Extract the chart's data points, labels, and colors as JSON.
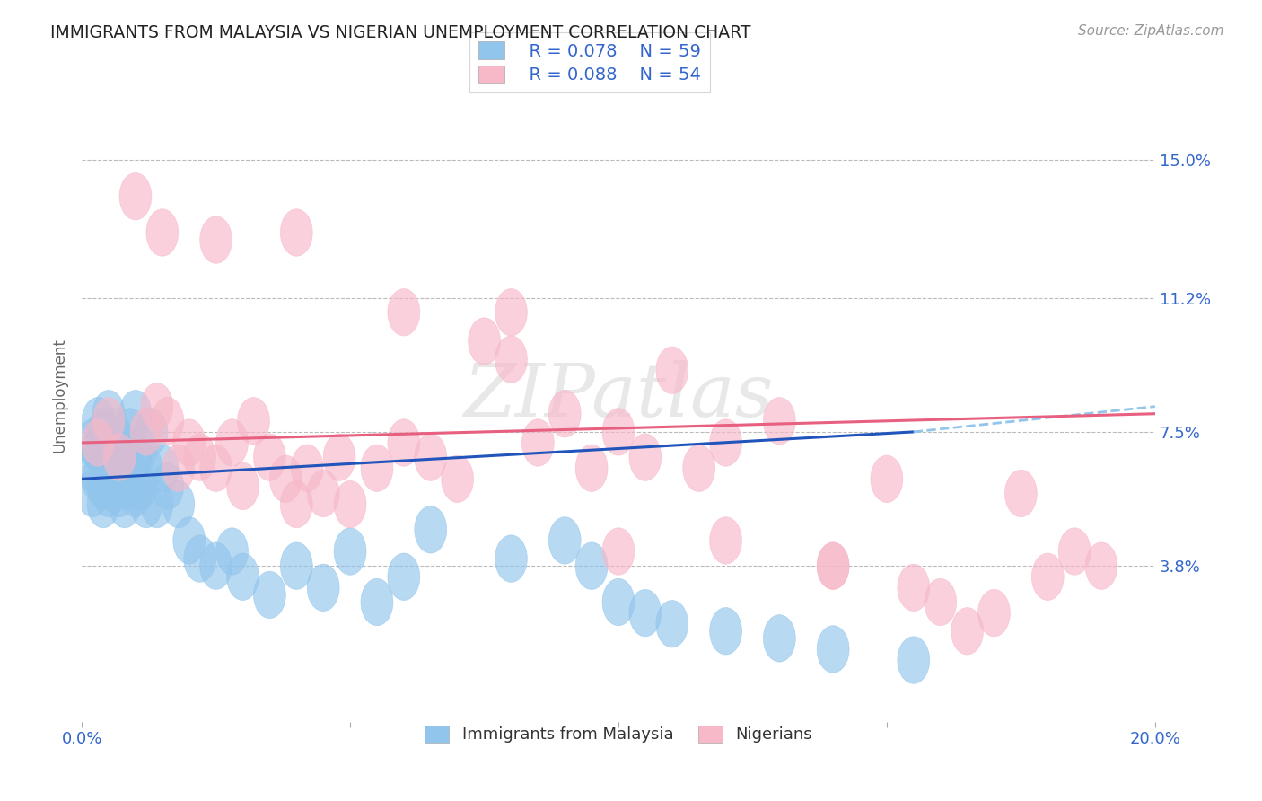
{
  "title": "IMMIGRANTS FROM MALAYSIA VS NIGERIAN UNEMPLOYMENT CORRELATION CHART",
  "source": "Source: ZipAtlas.com",
  "ylabel": "Unemployment",
  "xlim": [
    0.0,
    0.2
  ],
  "ylim": [
    -0.005,
    0.175
  ],
  "yticks": [
    0.038,
    0.075,
    0.112,
    0.15
  ],
  "ytick_labels": [
    "3.8%",
    "7.5%",
    "11.2%",
    "15.0%"
  ],
  "xticks": [
    0.0,
    0.05,
    0.1,
    0.15,
    0.2
  ],
  "xtick_labels": [
    "0.0%",
    "",
    "",
    "",
    "20.0%"
  ],
  "legend_r1": "R = 0.078",
  "legend_n1": "N = 59",
  "legend_r2": "R = 0.088",
  "legend_n2": "N = 54",
  "color_blue": "#92C5EC",
  "color_pink": "#F7B8C8",
  "line_blue": "#2255BB",
  "line_pink": "#E86080",
  "watermark": "ZIPatlas",
  "blue_scatter_x": [
    0.002,
    0.002,
    0.002,
    0.003,
    0.003,
    0.003,
    0.004,
    0.004,
    0.004,
    0.004,
    0.005,
    0.005,
    0.005,
    0.005,
    0.006,
    0.006,
    0.006,
    0.007,
    0.007,
    0.007,
    0.008,
    0.008,
    0.008,
    0.009,
    0.009,
    0.01,
    0.01,
    0.01,
    0.011,
    0.011,
    0.012,
    0.012,
    0.013,
    0.014,
    0.015,
    0.016,
    0.018,
    0.02,
    0.022,
    0.025,
    0.028,
    0.03,
    0.035,
    0.04,
    0.045,
    0.05,
    0.055,
    0.06,
    0.065,
    0.08,
    0.09,
    0.095,
    0.1,
    0.105,
    0.11,
    0.12,
    0.13,
    0.14,
    0.155
  ],
  "blue_scatter_y": [
    0.065,
    0.072,
    0.058,
    0.07,
    0.062,
    0.078,
    0.055,
    0.068,
    0.075,
    0.06,
    0.072,
    0.058,
    0.065,
    0.08,
    0.06,
    0.068,
    0.075,
    0.058,
    0.065,
    0.072,
    0.06,
    0.07,
    0.055,
    0.065,
    0.075,
    0.058,
    0.068,
    0.08,
    0.06,
    0.07,
    0.055,
    0.065,
    0.075,
    0.055,
    0.065,
    0.06,
    0.055,
    0.045,
    0.04,
    0.038,
    0.042,
    0.035,
    0.03,
    0.038,
    0.032,
    0.042,
    0.028,
    0.035,
    0.048,
    0.04,
    0.045,
    0.038,
    0.028,
    0.025,
    0.022,
    0.02,
    0.018,
    0.015,
    0.012
  ],
  "pink_scatter_x": [
    0.003,
    0.005,
    0.007,
    0.01,
    0.012,
    0.014,
    0.016,
    0.018,
    0.02,
    0.022,
    0.025,
    0.028,
    0.03,
    0.032,
    0.035,
    0.038,
    0.04,
    0.042,
    0.045,
    0.048,
    0.05,
    0.055,
    0.06,
    0.065,
    0.07,
    0.075,
    0.08,
    0.085,
    0.09,
    0.095,
    0.1,
    0.105,
    0.11,
    0.115,
    0.12,
    0.13,
    0.14,
    0.15,
    0.155,
    0.16,
    0.165,
    0.17,
    0.175,
    0.18,
    0.185,
    0.19,
    0.015,
    0.025,
    0.04,
    0.06,
    0.08,
    0.1,
    0.12,
    0.14
  ],
  "pink_scatter_y": [
    0.072,
    0.078,
    0.068,
    0.14,
    0.075,
    0.082,
    0.078,
    0.065,
    0.072,
    0.068,
    0.065,
    0.072,
    0.06,
    0.078,
    0.068,
    0.062,
    0.055,
    0.065,
    0.058,
    0.068,
    0.055,
    0.065,
    0.072,
    0.068,
    0.062,
    0.1,
    0.095,
    0.072,
    0.08,
    0.065,
    0.075,
    0.068,
    0.092,
    0.065,
    0.072,
    0.078,
    0.038,
    0.062,
    0.032,
    0.028,
    0.02,
    0.025,
    0.058,
    0.035,
    0.042,
    0.038,
    0.13,
    0.128,
    0.13,
    0.108,
    0.108,
    0.042,
    0.045,
    0.038
  ],
  "trend_blue_x0": 0.0,
  "trend_blue_y0": 0.062,
  "trend_blue_x1": 0.155,
  "trend_blue_y1": 0.075,
  "trend_blue_dash_x1": 0.2,
  "trend_blue_dash_y1": 0.082,
  "trend_pink_x0": 0.0,
  "trend_pink_y0": 0.072,
  "trend_pink_x1": 0.2,
  "trend_pink_y1": 0.08
}
